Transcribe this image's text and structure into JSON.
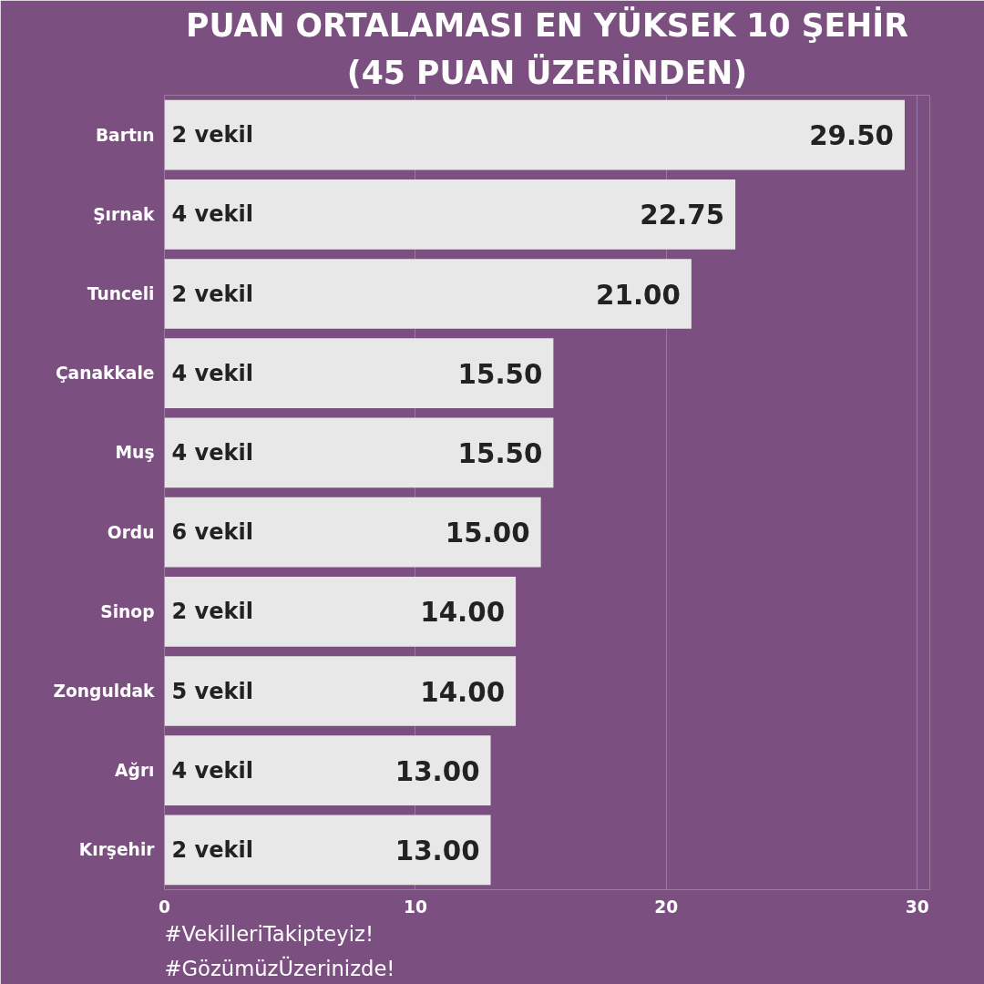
{
  "chart_data": {
    "type": "bar",
    "orientation": "horizontal",
    "title": "PUAN ORTALAMASI EN YÜKSEK 10 ŞEHİR",
    "subtitle": "(45 PUAN ÜZERİNDEN)",
    "categories": [
      "Bartın",
      "Şırnak",
      "Tunceli",
      "Çanakkale",
      "Muş",
      "Ordu",
      "Sinop",
      "Zonguldak",
      "Ağrı",
      "Kırşehir"
    ],
    "values": [
      29.5,
      22.75,
      21.0,
      15.5,
      15.5,
      15.0,
      14.0,
      14.0,
      13.0,
      13.0
    ],
    "value_labels": [
      "29.50",
      "22.75",
      "21.00",
      "15.50",
      "15.50",
      "15.00",
      "14.00",
      "14.00",
      "13.00",
      "13.00"
    ],
    "color": "#e8e8e8",
    "xlim": [
      0,
      30.5
    ],
    "xticks": [
      0,
      10,
      20,
      30
    ],
    "grid": "x",
    "annotations": [
      {
        "text": "2 vekil",
        "y": "Bartın"
      },
      {
        "text": "4 vekil",
        "y": "Şırnak"
      },
      {
        "text": "2 vekil",
        "y": "Tunceli"
      },
      {
        "text": "4 vekil",
        "y": "Çanakkale"
      },
      {
        "text": "4 vekil",
        "y": "Muş"
      },
      {
        "text": "6 vekil",
        "y": "Ordu"
      },
      {
        "text": "2 vekil",
        "y": "Sinop"
      },
      {
        "text": "5 vekil",
        "y": "Zonguldak"
      },
      {
        "text": "4 vekil",
        "y": "Ağrı"
      },
      {
        "text": "2 vekil",
        "y": "Kırşehir"
      },
      "#VekilleriTakipteyiz!",
      "#GözümüzÜzerinizde!"
    ]
  }
}
